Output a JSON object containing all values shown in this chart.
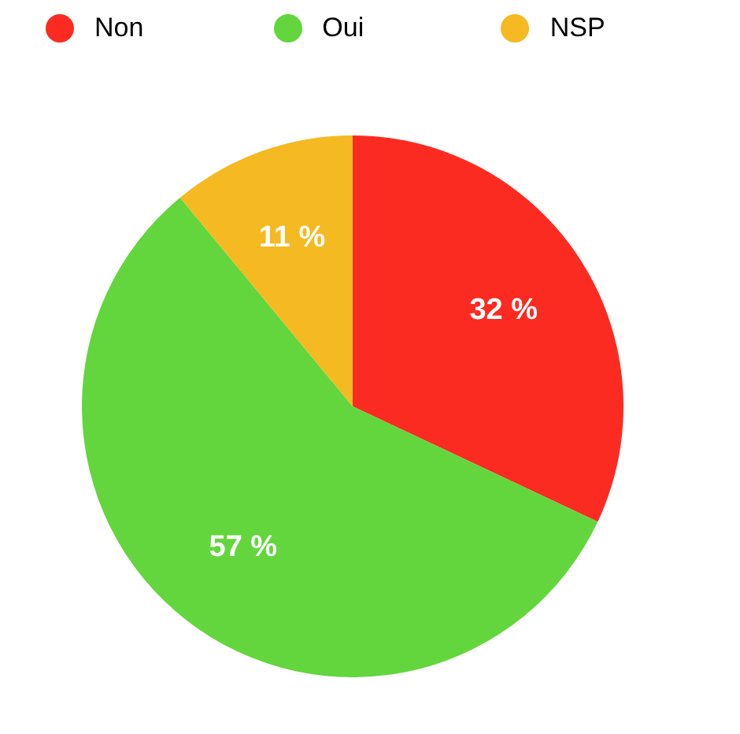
{
  "chart_data": {
    "type": "pie",
    "categories": [
      "Non",
      "Oui",
      "NSP"
    ],
    "values": [
      32,
      57,
      11
    ],
    "colors": [
      "#fb2b21",
      "#63d63d",
      "#f5b921"
    ],
    "value_labels": [
      "32 %",
      "57 %",
      "11 %"
    ],
    "legend": "top"
  }
}
